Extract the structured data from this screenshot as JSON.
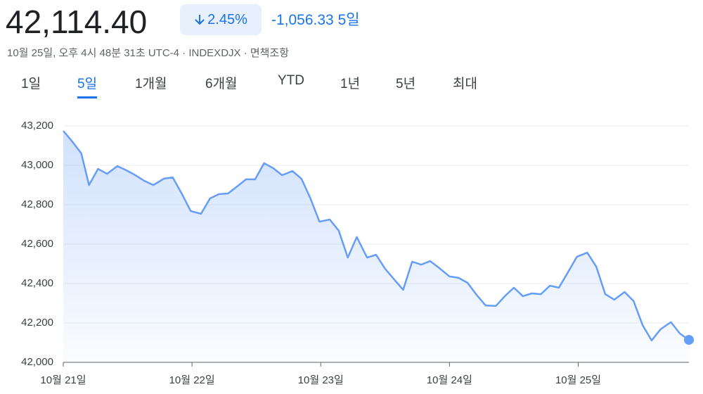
{
  "header": {
    "price": "42,114.40",
    "change_percent": "2.45%",
    "change": "-1,056.33",
    "period": "5일",
    "meta": "10월 25일, 오후 4시 48분 31초 UTC-4 · INDEXDJX · ",
    "disclaimer": "면책조항"
  },
  "tabs": {
    "items": [
      "1일",
      "5일",
      "1개월",
      "6개월",
      "YTD",
      "1년",
      "5년",
      "최대"
    ],
    "selected": 1
  },
  "chart_data": {
    "type": "area",
    "color": "#669df6",
    "x": [
      0,
      0.06,
      0.14,
      0.2,
      0.27,
      0.34,
      0.42,
      0.49,
      0.56,
      0.63,
      0.7,
      0.78,
      0.85,
      0.92,
      0.99,
      1.07,
      1.14,
      1.21,
      1.28,
      1.35,
      1.42,
      1.49,
      1.56,
      1.63,
      1.7,
      1.78,
      1.85,
      1.92,
      1.99,
      2.07,
      2.14,
      2.21,
      2.28,
      2.36,
      2.43,
      2.5,
      2.57,
      2.64,
      2.71,
      2.78,
      2.85,
      2.92,
      3.0,
      3.07,
      3.14,
      3.21,
      3.28,
      3.36,
      3.43,
      3.5,
      3.57,
      3.64,
      3.71,
      3.78,
      3.85,
      3.92,
      3.99,
      4.07,
      4.14,
      4.21,
      4.28,
      4.36,
      4.43,
      4.5,
      4.57,
      4.64,
      4.72,
      4.79,
      4.86
    ],
    "values": [
      43175,
      43129,
      43061,
      42900,
      42982,
      42957,
      42996,
      42975,
      42950,
      42921,
      42900,
      42932,
      42939,
      42857,
      42768,
      42754,
      42832,
      42854,
      42857,
      42893,
      42929,
      42929,
      43011,
      42986,
      42950,
      42971,
      42932,
      42832,
      42714,
      42725,
      42668,
      42532,
      42636,
      42532,
      42546,
      42475,
      42421,
      42368,
      42511,
      42496,
      42514,
      42479,
      42436,
      42429,
      42404,
      42343,
      42289,
      42286,
      42336,
      42379,
      42336,
      42350,
      42346,
      42389,
      42379,
      42457,
      42536,
      42557,
      42486,
      42346,
      42318,
      42357,
      42311,
      42189,
      42111,
      42168,
      42204,
      42146,
      42114
    ],
    "xlim": [
      0,
      4.86
    ],
    "ylim": [
      42000,
      43200
    ],
    "xticks": [
      {
        "value": 0,
        "label": "10월 21일"
      },
      {
        "value": 1,
        "label": "10월 22일"
      },
      {
        "value": 2,
        "label": "10월 23일"
      },
      {
        "value": 3,
        "label": "10월 24일"
      },
      {
        "value": 4,
        "label": "10월 25일"
      }
    ],
    "yticks": [
      {
        "value": 42000,
        "label": "42,000"
      },
      {
        "value": 42200,
        "label": "42,200"
      },
      {
        "value": 42400,
        "label": "42,400"
      },
      {
        "value": 42600,
        "label": "42,600"
      },
      {
        "value": 42800,
        "label": "42,800"
      },
      {
        "value": 43000,
        "label": "43,000"
      },
      {
        "value": 43200,
        "label": "43,200"
      }
    ],
    "grid": true
  }
}
